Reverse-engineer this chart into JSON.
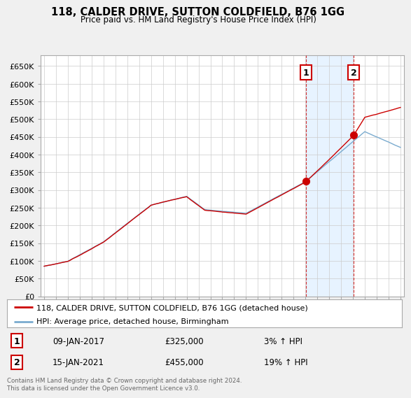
{
  "title": "118, CALDER DRIVE, SUTTON COLDFIELD, B76 1GG",
  "subtitle": "Price paid vs. HM Land Registry's House Price Index (HPI)",
  "legend_label_red": "118, CALDER DRIVE, SUTTON COLDFIELD, B76 1GG (detached house)",
  "legend_label_blue": "HPI: Average price, detached house, Birmingham",
  "point1_date": "09-JAN-2017",
  "point1_price": "£325,000",
  "point1_hpi": "3% ↑ HPI",
  "point1_year": 2017.05,
  "point1_value": 325000,
  "point2_date": "15-JAN-2021",
  "point2_price": "£455,000",
  "point2_hpi": "19% ↑ HPI",
  "point2_year": 2021.05,
  "point2_value": 455000,
  "footer": "Contains HM Land Registry data © Crown copyright and database right 2024.\nThis data is licensed under the Open Government Licence v3.0.",
  "bg_color": "#f0f0f0",
  "plot_bg_color": "#ffffff",
  "red_color": "#cc0000",
  "blue_color": "#7aabcf",
  "shade_color": "#ddeeff",
  "grid_color": "#cccccc",
  "ylim": [
    0,
    680000
  ],
  "xlim": [
    1994.7,
    2025.3
  ],
  "yticks": [
    0,
    50000,
    100000,
    150000,
    200000,
    250000,
    300000,
    350000,
    400000,
    450000,
    500000,
    550000,
    600000,
    650000
  ],
  "ytick_labels": [
    "£0",
    "£50K",
    "£100K",
    "£150K",
    "£200K",
    "£250K",
    "£300K",
    "£350K",
    "£400K",
    "£450K",
    "£500K",
    "£550K",
    "£600K",
    "£650K"
  ],
  "xticks": [
    1995,
    1996,
    1997,
    1998,
    1999,
    2000,
    2001,
    2002,
    2003,
    2004,
    2005,
    2006,
    2007,
    2008,
    2009,
    2010,
    2011,
    2012,
    2013,
    2014,
    2015,
    2016,
    2017,
    2018,
    2019,
    2020,
    2021,
    2022,
    2023,
    2024,
    2025
  ]
}
